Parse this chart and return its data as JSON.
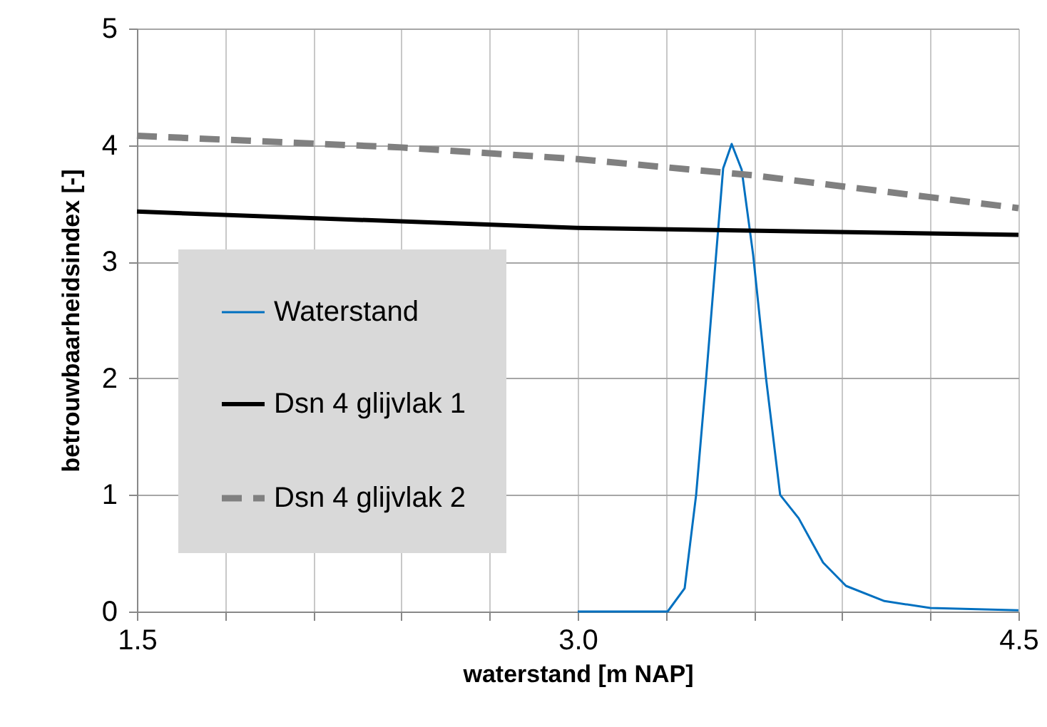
{
  "chart_data": {
    "type": "line",
    "xlabel": "waterstand [m NAP]",
    "ylabel": "betrouwbaarheidsindex [-]",
    "xlim": [
      1.5,
      4.5
    ],
    "ylim": [
      0,
      5
    ],
    "xticks": [
      1.5,
      {
        "value": 1.8,
        "label": null
      },
      {
        "value": 2.1,
        "label": null
      },
      {
        "value": 2.4,
        "label": null
      },
      {
        "value": 2.7,
        "label": null
      },
      {
        "value": 3.0,
        "label": "3.0"
      },
      {
        "value": 3.3,
        "label": null
      },
      {
        "value": 3.6,
        "label": null
      },
      {
        "value": 3.9,
        "label": null
      },
      {
        "value": 4.2,
        "label": null
      },
      4.5
    ],
    "yticks": [
      0,
      1,
      2,
      3,
      4,
      5
    ],
    "grid": true,
    "legend": "left",
    "marker": "none",
    "series": [
      {
        "name": "Waterstand",
        "color": "#0070c0",
        "line_style": "solid",
        "x": [
          3.0,
          3.306,
          3.364,
          3.403,
          3.437,
          3.471,
          3.495,
          3.524,
          3.558,
          3.597,
          3.641,
          3.689,
          3.752,
          3.835,
          3.913,
          4.044,
          4.2,
          4.5
        ],
        "values": [
          0,
          0,
          0.2,
          1.0,
          2.0,
          3.06,
          3.8,
          4.01,
          3.79,
          3.06,
          2.0,
          1.0,
          0.8,
          0.42,
          0.22,
          0.09,
          0.03,
          0.01
        ]
      },
      {
        "name": "Dsn 4 glijvlak 1",
        "color": "#000000",
        "line_style": "solid",
        "x": [
          1.5,
          3.0,
          4.5
        ],
        "values": [
          3.43,
          3.29,
          3.23
        ]
      },
      {
        "name": "Dsn 4 glijvlak 2",
        "color": "#808080",
        "line_style": "dashed",
        "x": [
          1.5,
          2.4,
          3.0,
          3.6,
          4.5
        ],
        "values": [
          4.08,
          3.98,
          3.88,
          3.74,
          3.46
        ]
      }
    ]
  }
}
